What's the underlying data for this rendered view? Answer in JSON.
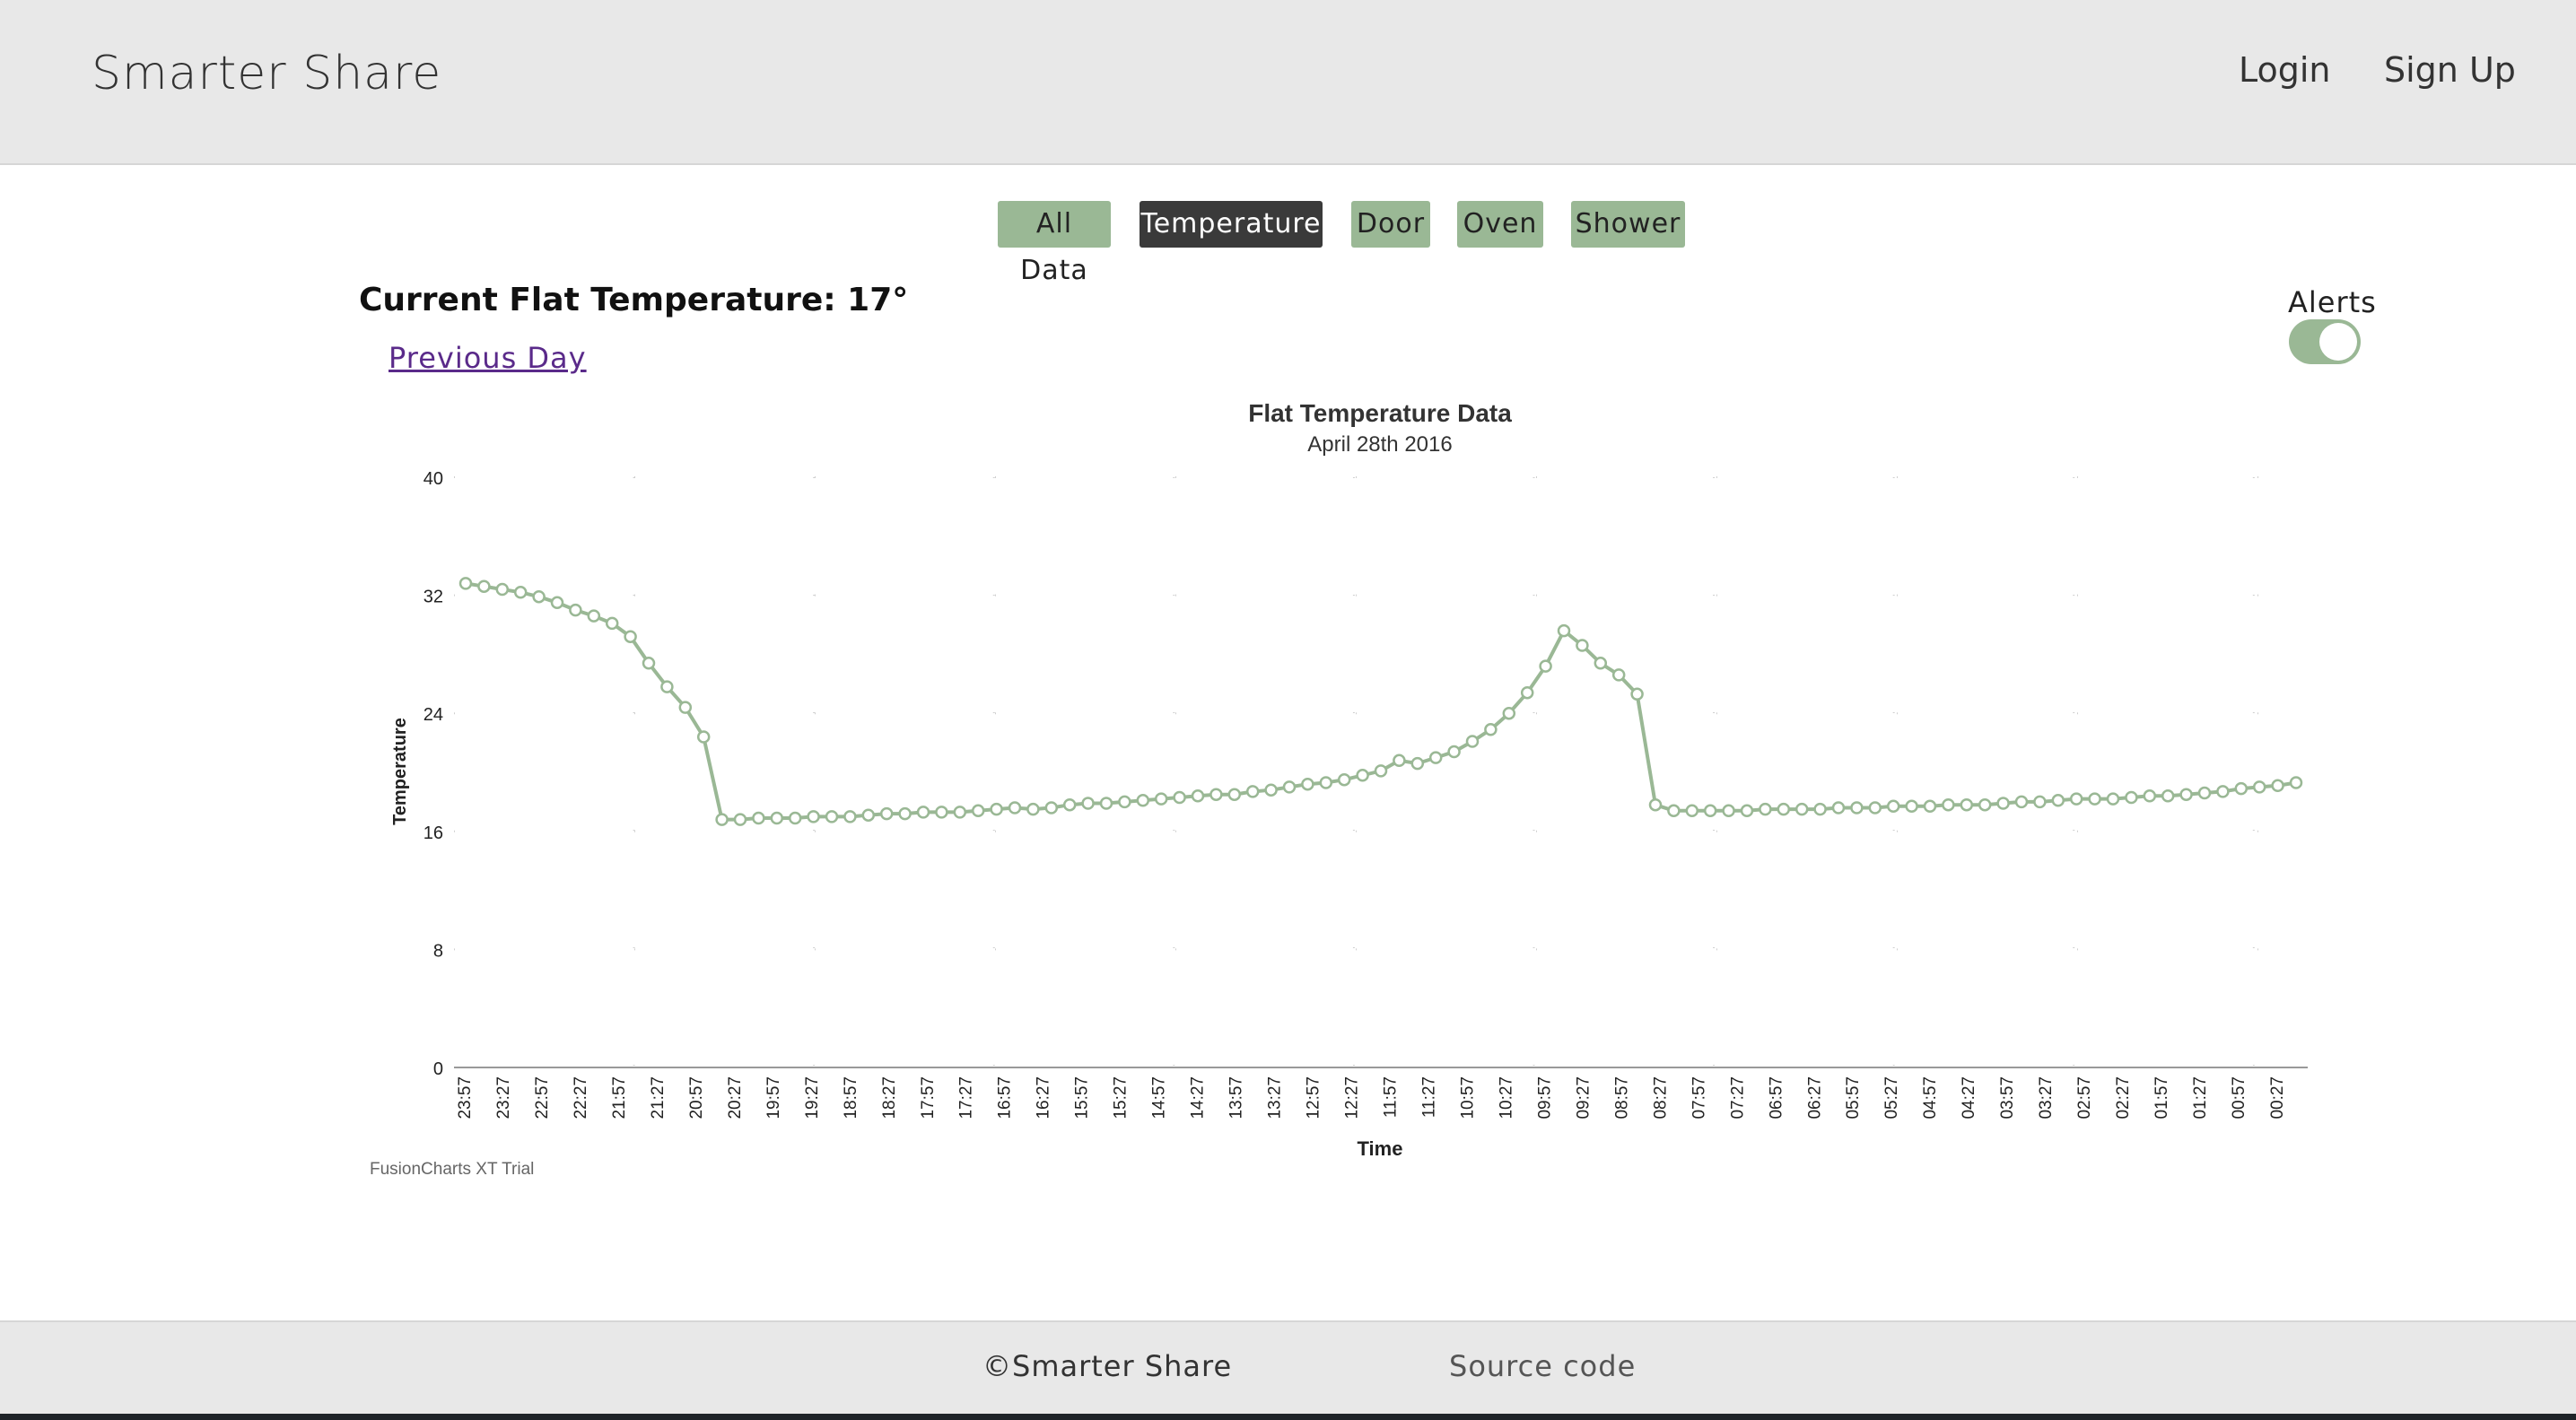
{
  "header": {
    "brand": "Smarter Share",
    "login_label": "Login",
    "signup_label": "Sign Up"
  },
  "tabs": [
    {
      "label": "All Data",
      "active": false
    },
    {
      "label": "Temperature",
      "active": true
    },
    {
      "label": "Door",
      "active": false
    },
    {
      "label": "Oven",
      "active": false
    },
    {
      "label": "Shower",
      "active": false
    }
  ],
  "main": {
    "current_temp_label": "Current Flat Temperature: 17°",
    "previous_day_label": "Previous Day",
    "alerts_label": "Alerts",
    "alerts_enabled": true
  },
  "chart_data": {
    "type": "line",
    "title": "Flat Temperature Data",
    "subtitle": "April 28th 2016",
    "xlabel": "Time",
    "ylabel": "Temperature",
    "ylim": [
      0,
      40
    ],
    "yticks": [
      0,
      8,
      16,
      24,
      32,
      40
    ],
    "x_tick_labels": [
      "23:57",
      "23:27",
      "22:57",
      "22:27",
      "21:57",
      "21:27",
      "20:57",
      "20:27",
      "19:57",
      "19:27",
      "18:57",
      "18:27",
      "17:57",
      "17:27",
      "16:57",
      "16:27",
      "15:57",
      "15:27",
      "14:57",
      "14:27",
      "13:57",
      "13:27",
      "12:57",
      "12:27",
      "11:57",
      "11:27",
      "10:57",
      "10:27",
      "09:57",
      "09:27",
      "08:57",
      "08:27",
      "07:57",
      "07:27",
      "06:57",
      "06:27",
      "05:57",
      "05:27",
      "04:57",
      "04:27",
      "03:57",
      "03:27",
      "02:57",
      "02:27",
      "01:57",
      "01:27",
      "00:57",
      "00:27"
    ],
    "values": [
      32.8,
      32.6,
      32.4,
      32.2,
      31.9,
      31.5,
      31.0,
      30.6,
      30.1,
      29.2,
      27.4,
      25.8,
      24.4,
      22.4,
      16.8,
      16.8,
      16.9,
      16.9,
      16.9,
      17.0,
      17.0,
      17.0,
      17.1,
      17.2,
      17.2,
      17.3,
      17.3,
      17.3,
      17.4,
      17.5,
      17.6,
      17.5,
      17.6,
      17.8,
      17.9,
      17.9,
      18.0,
      18.1,
      18.2,
      18.3,
      18.4,
      18.5,
      18.5,
      18.7,
      18.8,
      19.0,
      19.2,
      19.3,
      19.5,
      19.8,
      20.1,
      20.8,
      20.6,
      21.0,
      21.4,
      22.1,
      22.9,
      24.0,
      25.4,
      27.2,
      29.6,
      28.6,
      27.4,
      26.6,
      25.3,
      17.8,
      17.4,
      17.4,
      17.4,
      17.4,
      17.4,
      17.5,
      17.5,
      17.5,
      17.5,
      17.6,
      17.6,
      17.6,
      17.7,
      17.7,
      17.7,
      17.8,
      17.8,
      17.8,
      17.9,
      18.0,
      18.0,
      18.1,
      18.2,
      18.2,
      18.2,
      18.3,
      18.4,
      18.4,
      18.5,
      18.6,
      18.7,
      18.9,
      19.0,
      19.1,
      19.3
    ],
    "grid": true,
    "legend": "none",
    "line_color": "#9ab895",
    "watermark": "FusionCharts XT Trial"
  },
  "footer": {
    "copyright": "©Smarter Share",
    "source_label": "Source code"
  }
}
